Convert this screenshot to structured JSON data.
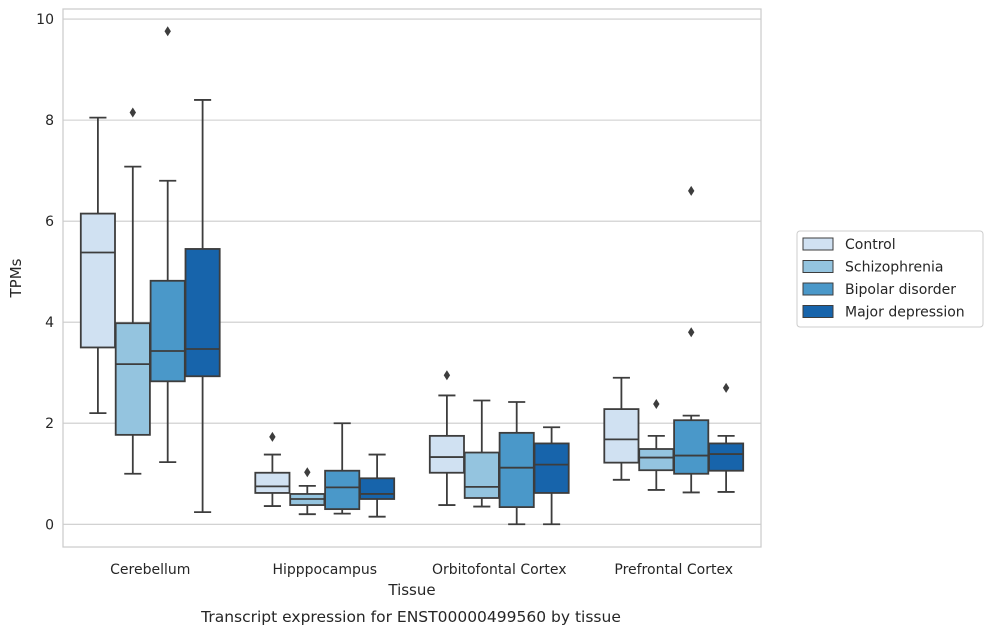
{
  "chart_data": {
    "type": "box",
    "xlabel": "Tissue",
    "ylabel": "TPMs",
    "caption": "Transcript expression for ENST00000499560 by tissue",
    "ylim": [
      -0.45,
      10.2
    ],
    "yticks": [
      0,
      2,
      4,
      6,
      8,
      10
    ],
    "grid": true,
    "legend_position": "right",
    "categories": [
      "Cerebellum",
      "Hipppocampus",
      "Orbitofontal Cortex",
      "Prefrontal Cortex"
    ],
    "series": [
      {
        "name": "Control",
        "color": "#d0e1f2",
        "boxes": [
          {
            "whislo": 2.2,
            "q1": 3.5,
            "med": 5.38,
            "q3": 6.15,
            "whishi": 8.05,
            "fliers": []
          },
          {
            "whislo": 0.36,
            "q1": 0.62,
            "med": 0.75,
            "q3": 1.02,
            "whishi": 1.38,
            "fliers": [
              1.73
            ]
          },
          {
            "whislo": 0.38,
            "q1": 1.02,
            "med": 1.33,
            "q3": 1.75,
            "whishi": 2.55,
            "fliers": [
              2.95
            ]
          },
          {
            "whislo": 0.88,
            "q1": 1.22,
            "med": 1.68,
            "q3": 2.28,
            "whishi": 2.9,
            "fliers": []
          }
        ]
      },
      {
        "name": "Schizophrenia",
        "color": "#94c4df",
        "boxes": [
          {
            "whislo": 1.0,
            "q1": 1.77,
            "med": 3.17,
            "q3": 3.98,
            "whishi": 7.08,
            "fliers": [
              8.15
            ]
          },
          {
            "whislo": 0.2,
            "q1": 0.38,
            "med": 0.5,
            "q3": 0.6,
            "whishi": 0.76,
            "fliers": [
              1.03
            ]
          },
          {
            "whislo": 0.35,
            "q1": 0.52,
            "med": 0.74,
            "q3": 1.42,
            "whishi": 2.45,
            "fliers": []
          },
          {
            "whislo": 0.68,
            "q1": 1.07,
            "med": 1.32,
            "q3": 1.49,
            "whishi": 1.75,
            "fliers": [
              2.38
            ]
          }
        ]
      },
      {
        "name": "Bipolar disorder",
        "color": "#4a98c9",
        "boxes": [
          {
            "whislo": 1.23,
            "q1": 2.83,
            "med": 3.43,
            "q3": 4.82,
            "whishi": 6.8,
            "fliers": [
              9.76
            ]
          },
          {
            "whislo": 0.21,
            "q1": 0.3,
            "med": 0.73,
            "q3": 1.06,
            "whishi": 2.0,
            "fliers": []
          },
          {
            "whislo": 0.0,
            "q1": 0.34,
            "med": 1.12,
            "q3": 1.81,
            "whishi": 2.42,
            "fliers": []
          },
          {
            "whislo": 0.63,
            "q1": 1.0,
            "med": 1.36,
            "q3": 2.06,
            "whishi": 2.15,
            "fliers": [
              3.8,
              6.6
            ]
          }
        ]
      },
      {
        "name": "Major depression",
        "color": "#1764ab",
        "boxes": [
          {
            "whislo": 0.24,
            "q1": 2.93,
            "med": 3.47,
            "q3": 5.45,
            "whishi": 8.4,
            "fliers": []
          },
          {
            "whislo": 0.15,
            "q1": 0.5,
            "med": 0.6,
            "q3": 0.91,
            "whishi": 1.38,
            "fliers": []
          },
          {
            "whislo": 0.0,
            "q1": 0.62,
            "med": 1.18,
            "q3": 1.6,
            "whishi": 1.92,
            "fliers": []
          },
          {
            "whislo": 0.64,
            "q1": 1.06,
            "med": 1.39,
            "q3": 1.6,
            "whishi": 1.75,
            "fliers": [
              2.7
            ]
          }
        ]
      }
    ]
  }
}
